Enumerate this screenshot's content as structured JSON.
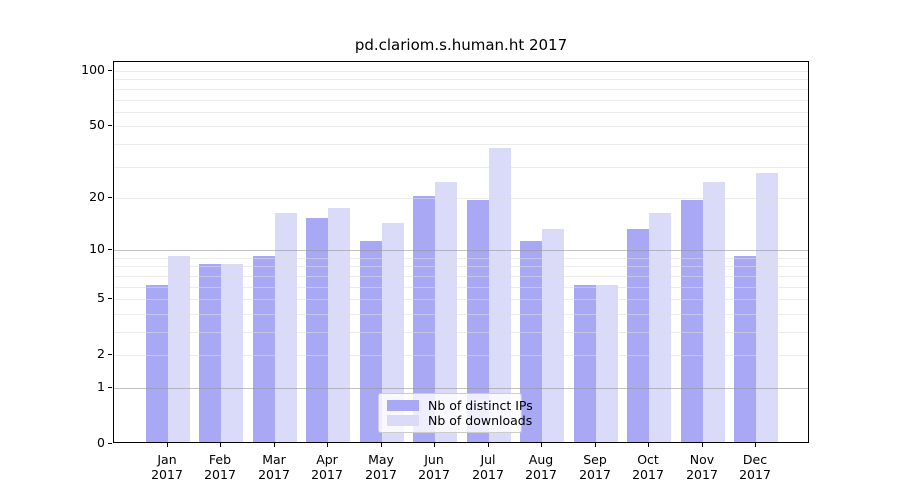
{
  "chart_data": {
    "type": "bar",
    "title": "pd.clariom.s.human.ht 2017",
    "categories": [
      "Jan 2017",
      "Feb 2017",
      "Mar 2017",
      "Apr 2017",
      "May 2017",
      "Jun 2017",
      "Jul 2017",
      "Aug 2017",
      "Sep 2017",
      "Oct 2017",
      "Nov 2017",
      "Dec 2017"
    ],
    "series": [
      {
        "name": "Nb of distinct IPs",
        "color": "#a8a8f5",
        "values": [
          6,
          8,
          9,
          15,
          11,
          20,
          19,
          11,
          6,
          13,
          19,
          9
        ]
      },
      {
        "name": "Nb of downloads",
        "color": "#dadaf9",
        "values": [
          9,
          8,
          16,
          17,
          14,
          24,
          37,
          13,
          6,
          16,
          24,
          27
        ]
      }
    ],
    "xlabel": "",
    "ylabel": "",
    "y_scale": "log1p",
    "y_ticks": [
      0,
      1,
      2,
      5,
      10,
      20,
      50,
      100
    ],
    "gridlines_minor": [
      2,
      3,
      4,
      5,
      6,
      7,
      8,
      9,
      20,
      30,
      40,
      50,
      60,
      70,
      80,
      90,
      100
    ],
    "gridlines_major": [
      1,
      10
    ],
    "ylim": [
      0,
      112
    ],
    "grid": true,
    "legend_position": "lower center",
    "axis_color": "#000000",
    "background_color": "#ffffff"
  }
}
